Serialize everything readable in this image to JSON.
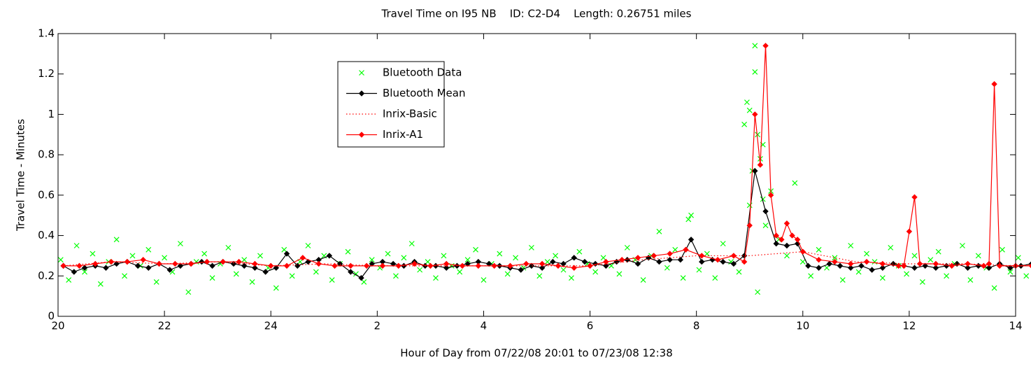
{
  "chart_data": {
    "type": "line",
    "title": "Travel Time on I95 NB    ID: C2-D4    Length: 0.26751 miles",
    "xlabel": "Hour of Day from 07/22/08 20:01 to 07/23/08 12:38",
    "ylabel": "Travel Time - Minutes",
    "xlim": [
      20,
      38
    ],
    "ylim": [
      0,
      1.4
    ],
    "xticks": [
      20,
      22,
      24,
      {
        "value": 26,
        "label": "2"
      },
      {
        "value": 28,
        "label": "4"
      },
      {
        "value": 30,
        "label": "6"
      },
      {
        "value": 32,
        "label": "8"
      },
      {
        "value": 34,
        "label": "10"
      },
      {
        "value": 36,
        "label": "12"
      },
      {
        "value": 38,
        "label": "14"
      }
    ],
    "yticks": [
      0,
      0.2,
      0.4,
      0.6,
      0.8,
      1,
      1.2,
      1.4
    ],
    "legend": "upper-left",
    "series": [
      {
        "name": "Bluetooth Data",
        "color": "#00ff00",
        "marker": "x",
        "line": "none",
        "x": [
          20.05,
          20.2,
          20.35,
          20.5,
          20.65,
          20.8,
          20.95,
          21.1,
          21.25,
          21.4,
          21.55,
          21.7,
          21.85,
          22.0,
          22.15,
          22.3,
          22.45,
          22.6,
          22.75,
          22.9,
          23.05,
          23.2,
          23.35,
          23.5,
          23.65,
          23.8,
          23.95,
          24.1,
          24.25,
          24.4,
          24.55,
          24.7,
          24.85,
          25.0,
          25.15,
          25.3,
          25.45,
          25.6,
          25.75,
          25.9,
          26.05,
          26.2,
          26.35,
          26.5,
          26.65,
          26.8,
          26.95,
          27.1,
          27.25,
          27.4,
          27.55,
          27.7,
          27.85,
          28.0,
          28.15,
          28.3,
          28.45,
          28.6,
          28.75,
          28.9,
          29.05,
          29.2,
          29.35,
          29.5,
          29.65,
          29.8,
          29.95,
          30.1,
          30.25,
          30.4,
          30.55,
          30.7,
          30.85,
          31.0,
          31.15,
          31.3,
          31.45,
          31.6,
          31.75,
          31.9,
          32.05,
          32.2,
          32.35,
          32.5,
          32.65,
          32.8,
          32.95,
          33.1,
          33.25,
          33.4,
          33.55,
          33.7,
          33.85,
          34.0,
          34.15,
          34.3,
          34.45,
          34.6,
          34.75,
          34.9,
          35.05,
          35.2,
          35.35,
          35.5,
          35.65,
          35.8,
          35.95,
          36.1,
          36.25,
          36.4,
          36.55,
          36.7,
          36.85,
          37.0,
          37.15,
          37.3,
          37.45,
          37.6,
          37.75,
          37.9,
          38.05,
          38.2,
          38.35,
          38.5,
          38.65,
          32.9,
          33.0,
          33.05,
          33.1,
          33.15,
          33.2,
          33.25,
          33.3,
          33.0,
          33.15,
          31.85
        ],
        "values": [
          0.28,
          0.18,
          0.35,
          0.22,
          0.31,
          0.16,
          0.27,
          0.38,
          0.2,
          0.3,
          0.25,
          0.33,
          0.17,
          0.29,
          0.22,
          0.36,
          0.12,
          0.27,
          0.31,
          0.19,
          0.26,
          0.34,
          0.21,
          0.28,
          0.17,
          0.3,
          0.24,
          0.14,
          0.33,
          0.2,
          0.27,
          0.35,
          0.22,
          0.3,
          0.18,
          0.26,
          0.32,
          0.21,
          0.17,
          0.28,
          0.24,
          0.31,
          0.2,
          0.29,
          0.36,
          0.23,
          0.27,
          0.19,
          0.3,
          0.25,
          0.22,
          0.28,
          0.33,
          0.18,
          0.26,
          0.31,
          0.21,
          0.29,
          0.24,
          0.34,
          0.2,
          0.27,
          0.3,
          0.23,
          0.19,
          0.32,
          0.26,
          0.22,
          0.29,
          0.25,
          0.21,
          0.34,
          0.28,
          0.18,
          0.3,
          0.42,
          0.24,
          0.33,
          0.19,
          0.5,
          0.23,
          0.31,
          0.19,
          0.36,
          0.27,
          0.22,
          1.06,
          1.34,
          0.85,
          0.62,
          0.38,
          0.3,
          0.66,
          0.27,
          0.2,
          0.33,
          0.24,
          0.29,
          0.18,
          0.35,
          0.22,
          0.31,
          0.27,
          0.19,
          0.34,
          0.25,
          0.21,
          0.3,
          0.17,
          0.28,
          0.32,
          0.2,
          0.26,
          0.35,
          0.18,
          0.3,
          0.24,
          0.14,
          0.33,
          0.22,
          0.29,
          0.2,
          0.34,
          0.25,
          0.19,
          0.95,
          1.02,
          0.72,
          1.21,
          0.12,
          0.78,
          0.58,
          0.45,
          0.55,
          0.9,
          0.48
        ]
      },
      {
        "name": "Bluetooth Mean",
        "color": "#000000",
        "marker": "diamond",
        "line": "solid",
        "x": [
          20.1,
          20.3,
          20.5,
          20.7,
          20.9,
          21.1,
          21.3,
          21.5,
          21.7,
          21.9,
          22.1,
          22.3,
          22.5,
          22.7,
          22.9,
          23.1,
          23.3,
          23.5,
          23.7,
          23.9,
          24.1,
          24.3,
          24.5,
          24.7,
          24.9,
          25.1,
          25.3,
          25.5,
          25.7,
          25.9,
          26.1,
          26.3,
          26.5,
          26.7,
          26.9,
          27.1,
          27.3,
          27.5,
          27.7,
          27.9,
          28.1,
          28.3,
          28.5,
          28.7,
          28.9,
          29.1,
          29.3,
          29.5,
          29.7,
          29.9,
          30.1,
          30.3,
          30.5,
          30.7,
          30.9,
          31.1,
          31.3,
          31.5,
          31.7,
          31.9,
          32.1,
          32.3,
          32.5,
          32.7,
          32.9,
          33.1,
          33.3,
          33.5,
          33.7,
          33.9,
          34.1,
          34.3,
          34.5,
          34.7,
          34.9,
          35.1,
          35.3,
          35.5,
          35.7,
          35.9,
          36.1,
          36.3,
          36.5,
          36.7,
          36.9,
          37.1,
          37.3,
          37.5,
          37.7,
          37.9,
          38.1,
          38.3,
          38.5,
          38.7
        ],
        "values": [
          0.25,
          0.22,
          0.24,
          0.25,
          0.24,
          0.26,
          0.27,
          0.25,
          0.24,
          0.26,
          0.23,
          0.25,
          0.26,
          0.27,
          0.25,
          0.27,
          0.26,
          0.25,
          0.24,
          0.22,
          0.24,
          0.31,
          0.25,
          0.27,
          0.28,
          0.3,
          0.26,
          0.22,
          0.19,
          0.26,
          0.27,
          0.26,
          0.25,
          0.27,
          0.25,
          0.25,
          0.24,
          0.25,
          0.26,
          0.27,
          0.26,
          0.25,
          0.24,
          0.23,
          0.25,
          0.24,
          0.27,
          0.26,
          0.29,
          0.27,
          0.26,
          0.25,
          0.27,
          0.28,
          0.26,
          0.29,
          0.27,
          0.28,
          0.28,
          0.38,
          0.27,
          0.28,
          0.27,
          0.26,
          0.3,
          0.72,
          0.52,
          0.36,
          0.35,
          0.36,
          0.25,
          0.24,
          0.26,
          0.25,
          0.24,
          0.25,
          0.23,
          0.24,
          0.26,
          0.25,
          0.24,
          0.25,
          0.24,
          0.25,
          0.26,
          0.24,
          0.25,
          0.24,
          0.26,
          0.24,
          0.25,
          0.26,
          0.25,
          0.3
        ]
      },
      {
        "name": "Inrix-Basic",
        "color": "#ff0000",
        "marker": null,
        "line": "dotted",
        "x": [
          20.1,
          21,
          22,
          23,
          24,
          25,
          26,
          27,
          28,
          29,
          30,
          31,
          32,
          33,
          34,
          35,
          36,
          37,
          38,
          38.6
        ],
        "values": [
          0.25,
          0.27,
          0.26,
          0.27,
          0.25,
          0.26,
          0.25,
          0.25,
          0.25,
          0.25,
          0.25,
          0.28,
          0.3,
          0.3,
          0.32,
          0.27,
          0.26,
          0.26,
          0.25,
          0.26
        ]
      },
      {
        "name": "Inrix-A1",
        "color": "#ff0000",
        "marker": "diamond",
        "line": "solid",
        "x": [
          20.1,
          20.4,
          20.7,
          21.0,
          21.3,
          21.6,
          21.9,
          22.2,
          22.5,
          22.8,
          23.1,
          23.4,
          23.7,
          24.0,
          24.3,
          24.6,
          24.9,
          25.2,
          25.5,
          25.8,
          26.1,
          26.4,
          26.7,
          27.0,
          27.3,
          27.6,
          27.9,
          28.2,
          28.5,
          28.8,
          29.1,
          29.4,
          29.7,
          30.0,
          30.3,
          30.6,
          30.9,
          31.2,
          31.5,
          31.8,
          32.1,
          32.4,
          32.7,
          32.9,
          33.0,
          33.1,
          33.2,
          33.3,
          33.4,
          33.5,
          33.6,
          33.7,
          33.8,
          33.9,
          34.0,
          34.3,
          34.6,
          34.9,
          35.2,
          35.5,
          35.8,
          35.9,
          36.0,
          36.1,
          36.2,
          36.5,
          36.8,
          37.1,
          37.4,
          37.5,
          37.6,
          37.7,
          38.0,
          38.3,
          38.6
        ],
        "values": [
          0.25,
          0.25,
          0.26,
          0.27,
          0.27,
          0.28,
          0.26,
          0.26,
          0.26,
          0.27,
          0.27,
          0.27,
          0.26,
          0.25,
          0.25,
          0.29,
          0.26,
          0.25,
          0.25,
          0.25,
          0.25,
          0.25,
          0.26,
          0.25,
          0.26,
          0.25,
          0.25,
          0.25,
          0.25,
          0.26,
          0.26,
          0.25,
          0.24,
          0.25,
          0.27,
          0.28,
          0.29,
          0.3,
          0.31,
          0.33,
          0.3,
          0.28,
          0.3,
          0.27,
          0.45,
          1.0,
          0.75,
          1.34,
          0.6,
          0.4,
          0.38,
          0.46,
          0.4,
          0.38,
          0.32,
          0.28,
          0.27,
          0.26,
          0.27,
          0.26,
          0.25,
          0.25,
          0.42,
          0.59,
          0.26,
          0.26,
          0.25,
          0.26,
          0.25,
          0.26,
          1.15,
          0.25,
          0.25,
          0.25,
          0.26
        ]
      }
    ]
  }
}
